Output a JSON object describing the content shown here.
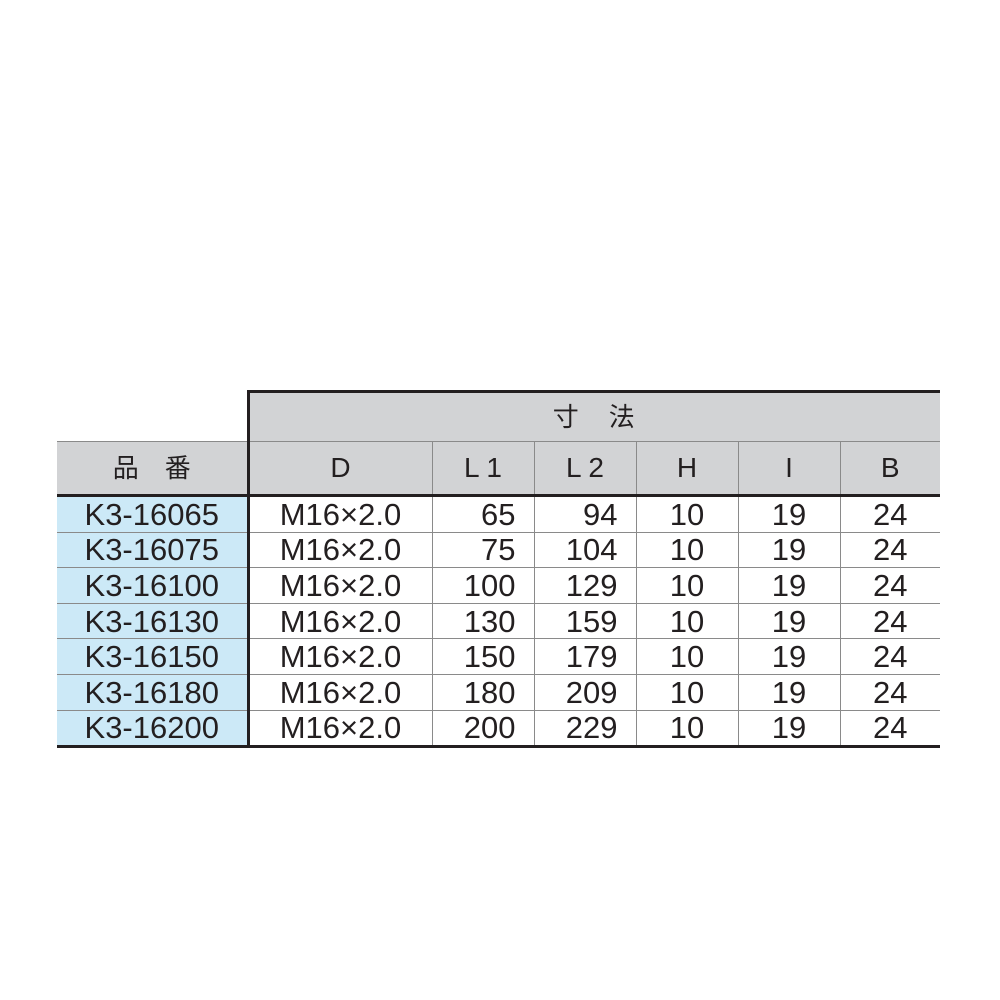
{
  "table": {
    "group_header": "寸　法",
    "columns": [
      "品　番",
      "D",
      "L 1",
      "L 2",
      "H",
      "I",
      "B"
    ],
    "rows": [
      [
        "K3-16065",
        "M16×2.0",
        "65",
        "94",
        "10",
        "19",
        "24"
      ],
      [
        "K3-16075",
        "M16×2.0",
        "75",
        "104",
        "10",
        "19",
        "24"
      ],
      [
        "K3-16100",
        "M16×2.0",
        "100",
        "129",
        "10",
        "19",
        "24"
      ],
      [
        "K3-16130",
        "M16×2.0",
        "130",
        "159",
        "10",
        "19",
        "24"
      ],
      [
        "K3-16150",
        "M16×2.0",
        "150",
        "179",
        "10",
        "19",
        "24"
      ],
      [
        "K3-16180",
        "M16×2.0",
        "180",
        "209",
        "10",
        "19",
        "24"
      ],
      [
        "K3-16200",
        "M16×2.0",
        "200",
        "229",
        "10",
        "19",
        "24"
      ]
    ],
    "colors": {
      "header_bg": "#d2d3d5",
      "part_number_bg": "#cce9f7"
    }
  }
}
